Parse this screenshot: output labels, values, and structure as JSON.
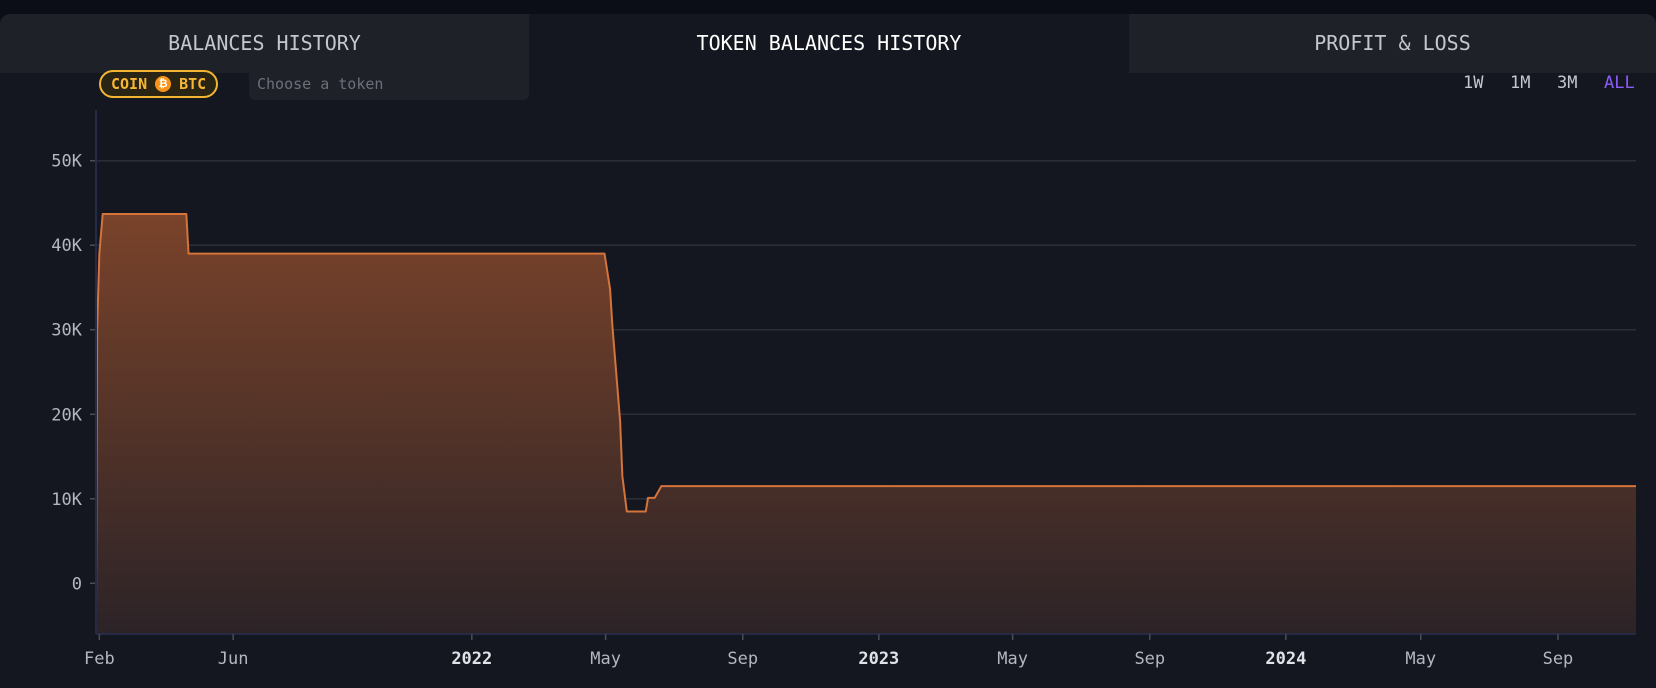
{
  "tabs": [
    {
      "label": "BALANCES HISTORY",
      "active": false
    },
    {
      "label": "TOKEN BALANCES HISTORY",
      "active": true
    },
    {
      "label": "PROFIT & LOSS",
      "active": false
    }
  ],
  "token_badge": {
    "prefix": "COIN",
    "icon": "bitcoin-icon",
    "symbol": "BTC"
  },
  "token_search": {
    "placeholder": "Choose a token",
    "value": ""
  },
  "ranges": [
    {
      "label": "1W",
      "active": false
    },
    {
      "label": "1M",
      "active": false
    },
    {
      "label": "3M",
      "active": false
    },
    {
      "label": "ALL",
      "active": true
    }
  ],
  "colors": {
    "line": "#d4743a",
    "fill_top": "#7a432a",
    "fill_bottom": "#2c2327",
    "active_range": "#8b5cf6",
    "badge": "#f7b733"
  },
  "chart_data": {
    "type": "area",
    "step": true,
    "grid": true,
    "y_ticks": [
      {
        "value": 0,
        "label": "0"
      },
      {
        "value": 10000,
        "label": "10K"
      },
      {
        "value": 20000,
        "label": "20K"
      },
      {
        "value": 30000,
        "label": "30K"
      },
      {
        "value": 40000,
        "label": "40K"
      },
      {
        "value": 50000,
        "label": "50K"
      }
    ],
    "ylim": [
      -6000,
      56000
    ],
    "xlim": [
      "2021-01-29",
      "2024-11-10"
    ],
    "x_ticks": [
      {
        "date": "2021-02-01",
        "label": "Feb",
        "year": false
      },
      {
        "date": "2021-06-01",
        "label": "Jun",
        "year": false
      },
      {
        "date": "2022-01-01",
        "label": "2022",
        "year": true
      },
      {
        "date": "2022-05-01",
        "label": "May",
        "year": false
      },
      {
        "date": "2022-09-01",
        "label": "Sep",
        "year": false
      },
      {
        "date": "2023-01-01",
        "label": "2023",
        "year": true
      },
      {
        "date": "2023-05-01",
        "label": "May",
        "year": false
      },
      {
        "date": "2023-09-01",
        "label": "Sep",
        "year": false
      },
      {
        "date": "2024-01-01",
        "label": "2024",
        "year": true
      },
      {
        "date": "2024-05-01",
        "label": "May",
        "year": false
      },
      {
        "date": "2024-09-01",
        "label": "Sep",
        "year": false
      }
    ],
    "series": [
      {
        "points": [
          [
            "2021-01-29",
            -3000
          ],
          [
            "2021-01-30",
            30000
          ],
          [
            "2021-02-01",
            39000
          ],
          [
            "2021-02-04",
            43700
          ],
          [
            "2021-04-20",
            43700
          ],
          [
            "2021-04-22",
            39000
          ],
          [
            "2022-04-30",
            39000
          ],
          [
            "2022-05-05",
            34800
          ],
          [
            "2022-05-07",
            30600
          ],
          [
            "2022-05-14",
            19200
          ],
          [
            "2022-05-16",
            12700
          ],
          [
            "2022-05-20",
            8500
          ],
          [
            "2022-06-06",
            8500
          ],
          [
            "2022-06-08",
            10100
          ],
          [
            "2022-06-14",
            10100
          ],
          [
            "2022-06-20",
            11500
          ],
          [
            "2024-11-10",
            11500
          ]
        ]
      }
    ]
  }
}
